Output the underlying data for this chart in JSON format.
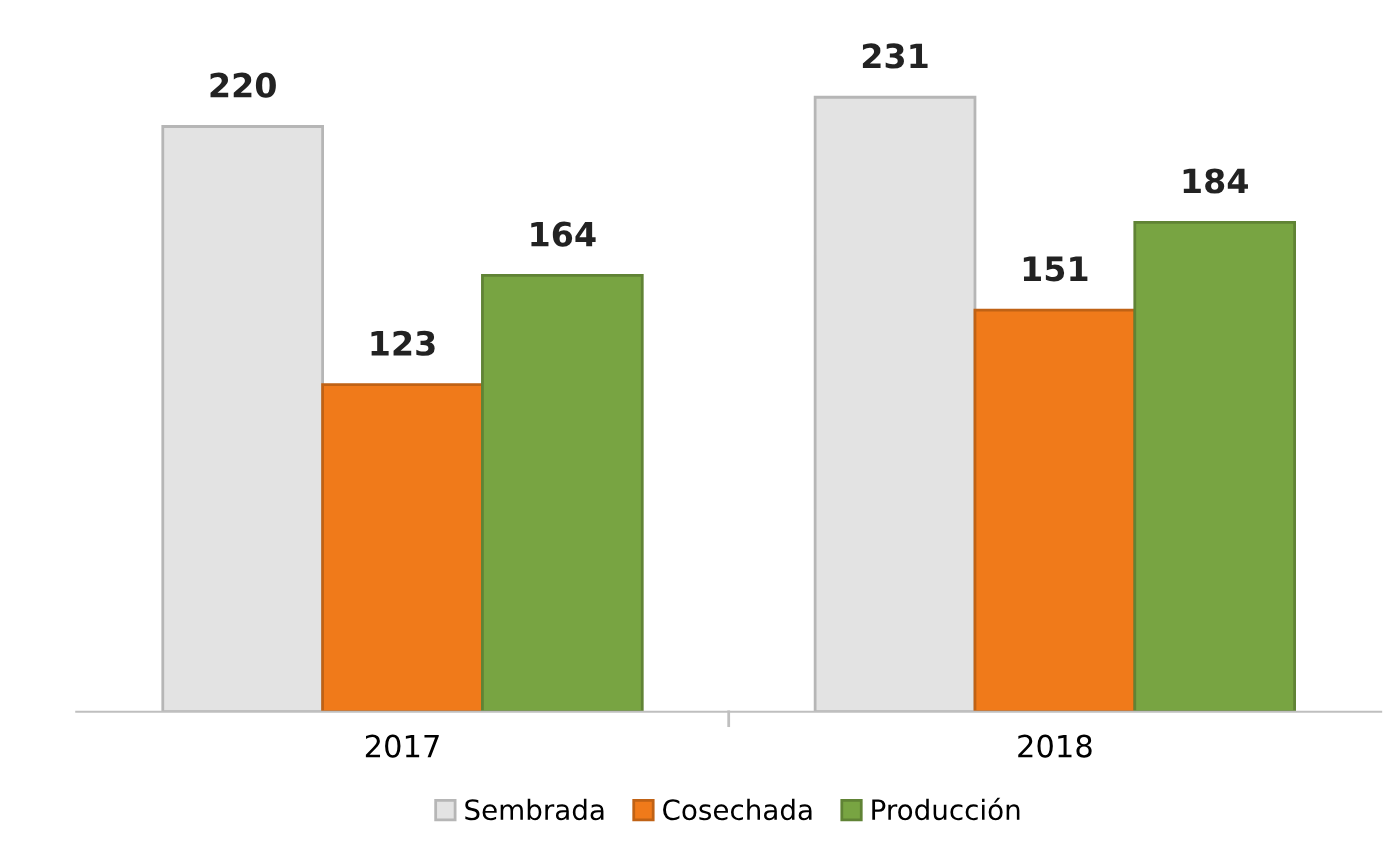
{
  "chart_data": {
    "type": "bar",
    "categories": [
      "2017",
      "2018"
    ],
    "series": [
      {
        "name": "Sembrada",
        "color": "#e3e3e3",
        "values": [
          220,
          231
        ]
      },
      {
        "name": "Cosechada",
        "color": "#f07a1a",
        "values": [
          123,
          151
        ]
      },
      {
        "name": "Producción",
        "color": "#78a442",
        "values": [
          164,
          184
        ]
      }
    ],
    "data_labels": true,
    "legend": "bottom"
  }
}
